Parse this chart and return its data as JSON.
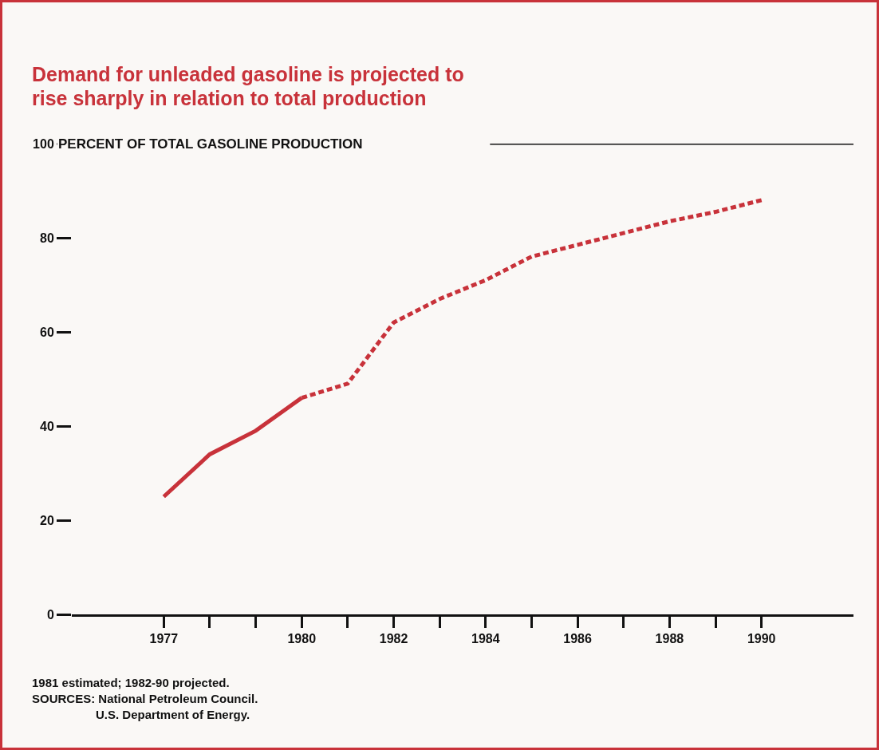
{
  "chart_data": {
    "type": "line",
    "title": "Demand for unleaded gasoline is projected to rise sharply in relation to total production",
    "series": [
      {
        "x": [
          1977,
          1978,
          1979,
          1980
        ],
        "values": [
          25,
          34,
          39,
          46
        ],
        "color": "#c8323a",
        "line_style": "solid"
      },
      {
        "x": [
          1980,
          1981,
          1982,
          1983,
          1984,
          1985,
          1986,
          1987,
          1988,
          1989,
          1990
        ],
        "values": [
          46,
          49,
          62,
          67,
          71,
          76,
          78.5,
          81,
          83.5,
          85.5,
          88
        ],
        "color": "#c8323a",
        "line_style": "dashed"
      }
    ],
    "xlim": [
      1975,
      1992
    ],
    "xticks": [
      1977,
      {
        "value": 1978,
        "label": null
      },
      {
        "value": 1979,
        "label": null
      },
      1980,
      {
        "value": 1981,
        "label": null
      },
      1982,
      {
        "value": 1983,
        "label": null
      },
      1984,
      {
        "value": 1985,
        "label": null
      },
      1986,
      {
        "value": 1987,
        "label": null
      },
      1988,
      {
        "value": 1989,
        "label": null
      },
      1990
    ],
    "ylim": [
      0,
      100
    ],
    "yticks": [
      0,
      20,
      40,
      60,
      80,
      100
    ],
    "ref_lines": [
      {
        "axis": "y",
        "value": 100,
        "label": "PERCENT OF TOTAL GASOLINE PRODUCTION",
        "color": "#111111"
      }
    ],
    "grid": false,
    "marker": "none",
    "annotations": [
      "1981 estimated; 1982-90 projected.",
      "SOURCES: National Petroleum Council.",
      "U.S. Department of Energy."
    ]
  }
}
